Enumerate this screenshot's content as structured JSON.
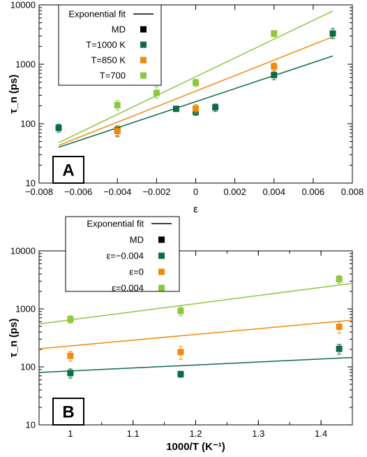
{
  "chart_data": [
    {
      "panel": "A",
      "type": "scatter",
      "xlabel": "ε",
      "ylabel": "τ_n (ps)",
      "xlim": [
        -0.008,
        0.008
      ],
      "ylim": [
        10,
        10000
      ],
      "yscale": "log",
      "x_ticks": [
        "−0.008",
        "−0.006",
        "−0.004",
        "−0.002",
        "0",
        "0.002",
        "0.004",
        "0.006",
        "0.008"
      ],
      "y_ticks": [
        "10",
        "100",
        "1000",
        "10000"
      ],
      "legend_position": "top-left",
      "legend": [
        {
          "label": "Exponential fit",
          "type": "line",
          "color": "#000000"
        },
        {
          "label": "MD",
          "type": "marker",
          "color": "#000000"
        },
        {
          "label": "T=1000 K",
          "type": "marker",
          "color": "#0f6b43"
        },
        {
          "label": "T=850 K",
          "type": "marker",
          "color": "#f08a0c"
        },
        {
          "label": "T=700",
          "type": "marker",
          "color": "#8dc63f"
        }
      ],
      "series": [
        {
          "name": "T=1000 K",
          "color": "#0f6b43",
          "x": [
            -0.007,
            -0.004,
            -0.001,
            0,
            0.001,
            0.004,
            0.007
          ],
          "y": [
            85,
            78,
            178,
            158,
            188,
            660,
            3300
          ],
          "yerr_low": [
            72,
            62,
            160,
            138,
            160,
            550,
            2700
          ],
          "yerr_high": [
            98,
            92,
            195,
            178,
            215,
            780,
            4000
          ],
          "fit": {
            "x": [
              -0.007,
              0.007
            ],
            "y": [
              40,
              1380
            ]
          }
        },
        {
          "name": "T=850 K",
          "color": "#f08a0c",
          "x": [
            -0.004,
            0,
            0.004
          ],
          "y": [
            75,
            180,
            920
          ],
          "yerr_low": [
            60,
            150,
            780
          ],
          "yerr_high": [
            90,
            210,
            1050
          ],
          "fit": {
            "x": [
              -0.007,
              0.007
            ],
            "y": [
              43,
              2900
            ]
          }
        },
        {
          "name": "T=700",
          "color": "#8dc63f",
          "x": [
            -0.004,
            -0.002,
            0,
            0.004
          ],
          "y": [
            205,
            330,
            490,
            3300
          ],
          "yerr_low": [
            170,
            270,
            420,
            2900
          ],
          "yerr_high": [
            245,
            420,
            560,
            3700
          ],
          "fit": {
            "x": [
              -0.007,
              0.007
            ],
            "y": [
              48,
              7900
            ]
          }
        }
      ],
      "panel_label": "A"
    },
    {
      "panel": "B",
      "type": "scatter",
      "xlabel": "1000/T (K⁻¹)",
      "ylabel": "τ_n (ps)",
      "xlim": [
        0.95,
        1.45
      ],
      "ylim": [
        10,
        10000
      ],
      "yscale": "log",
      "x_ticks": [
        "1",
        "1.1",
        "1.2",
        "1.3",
        "1.4"
      ],
      "y_ticks": [
        "10",
        "100",
        "1000",
        "10000"
      ],
      "legend_position": "top-left",
      "legend": [
        {
          "label": "Exponential fit",
          "type": "line",
          "color": "#000000"
        },
        {
          "label": "MD",
          "type": "marker",
          "color": "#000000"
        },
        {
          "label": "ε=−0.004",
          "type": "marker",
          "color": "#0f6b43"
        },
        {
          "label": "ε=0",
          "type": "marker",
          "color": "#f08a0c"
        },
        {
          "label": "ε=0.004",
          "type": "marker",
          "color": "#8dc63f"
        }
      ],
      "series": [
        {
          "name": "ε=−0.004",
          "color": "#0f6b43",
          "x": [
            1.0,
            1.176,
            1.429
          ],
          "y": [
            78,
            75,
            205
          ],
          "yerr_low": [
            64,
            66,
            165
          ],
          "yerr_high": [
            92,
            84,
            245
          ],
          "fit": {
            "x": [
              0.95,
              1.45
            ],
            "y": [
              80,
              145
            ]
          }
        },
        {
          "name": "ε=0",
          "color": "#f08a0c",
          "x": [
            1.0,
            1.176,
            1.429
          ],
          "y": [
            155,
            180,
            490
          ],
          "yerr_low": [
            125,
            135,
            380
          ],
          "yerr_high": [
            185,
            225,
            600
          ],
          "fit": {
            "x": [
              0.95,
              1.45
            ],
            "y": [
              205,
              640
            ]
          }
        },
        {
          "name": "ε=0.004",
          "color": "#8dc63f",
          "x": [
            1.0,
            1.176,
            1.429
          ],
          "y": [
            660,
            920,
            3250
          ],
          "yerr_low": [
            570,
            760,
            2750
          ],
          "yerr_high": [
            760,
            1080,
            3750
          ],
          "fit": {
            "x": [
              0.95,
              1.45
            ],
            "y": [
              550,
              2750
            ]
          }
        }
      ],
      "panel_label": "B"
    }
  ]
}
